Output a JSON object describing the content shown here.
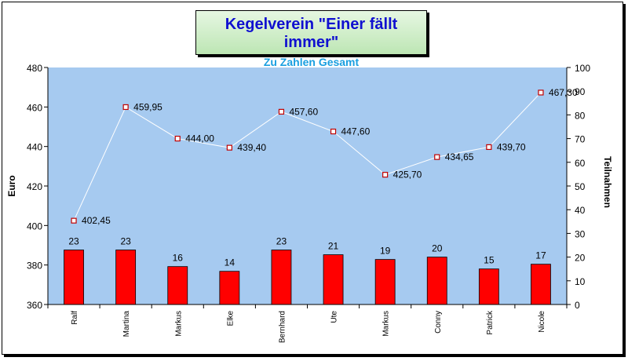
{
  "chart_data": {
    "type": "bar",
    "title": "Kegelverein \"Einer fällt immer\"",
    "subtitle": "Zu Zahlen Gesamt",
    "categories": [
      "Ralf",
      "Martina",
      "Markus",
      "Elke",
      "Bernhard",
      "Ute",
      "Markus",
      "Conny",
      "Patrick",
      "Nicole"
    ],
    "series": [
      {
        "name": "Teilnahmen",
        "type": "bar",
        "axis": "right",
        "color": "#ff0000",
        "values": [
          23,
          23,
          16,
          14,
          23,
          21,
          19,
          20,
          15,
          17
        ],
        "labels": [
          "23",
          "23",
          "16",
          "14",
          "23",
          "21",
          "19",
          "20",
          "15",
          "17"
        ]
      },
      {
        "name": "Euro",
        "type": "line",
        "axis": "left",
        "color": "#ffffff",
        "marker_color": "#c00000",
        "values": [
          402.45,
          459.95,
          444.0,
          439.4,
          457.6,
          447.6,
          425.7,
          434.65,
          439.7,
          467.3
        ],
        "labels": [
          "402,45",
          "459,95",
          "444,00",
          "439,40",
          "457,60",
          "447,60",
          "425,70",
          "434,65",
          "439,70",
          "467,30"
        ]
      }
    ],
    "ylabel": "Euro",
    "y2label": "Teilnahmen",
    "ylim": [
      360,
      480
    ],
    "y2lim": [
      0,
      100
    ],
    "yticks": [
      "360",
      "380",
      "400",
      "420",
      "440",
      "460",
      "480"
    ],
    "y2ticks": [
      "0",
      "10",
      "20",
      "30",
      "40",
      "50",
      "60",
      "70",
      "80",
      "90",
      "100"
    ],
    "plot_background": "#a6caf0",
    "grid": false,
    "legend": "none"
  }
}
